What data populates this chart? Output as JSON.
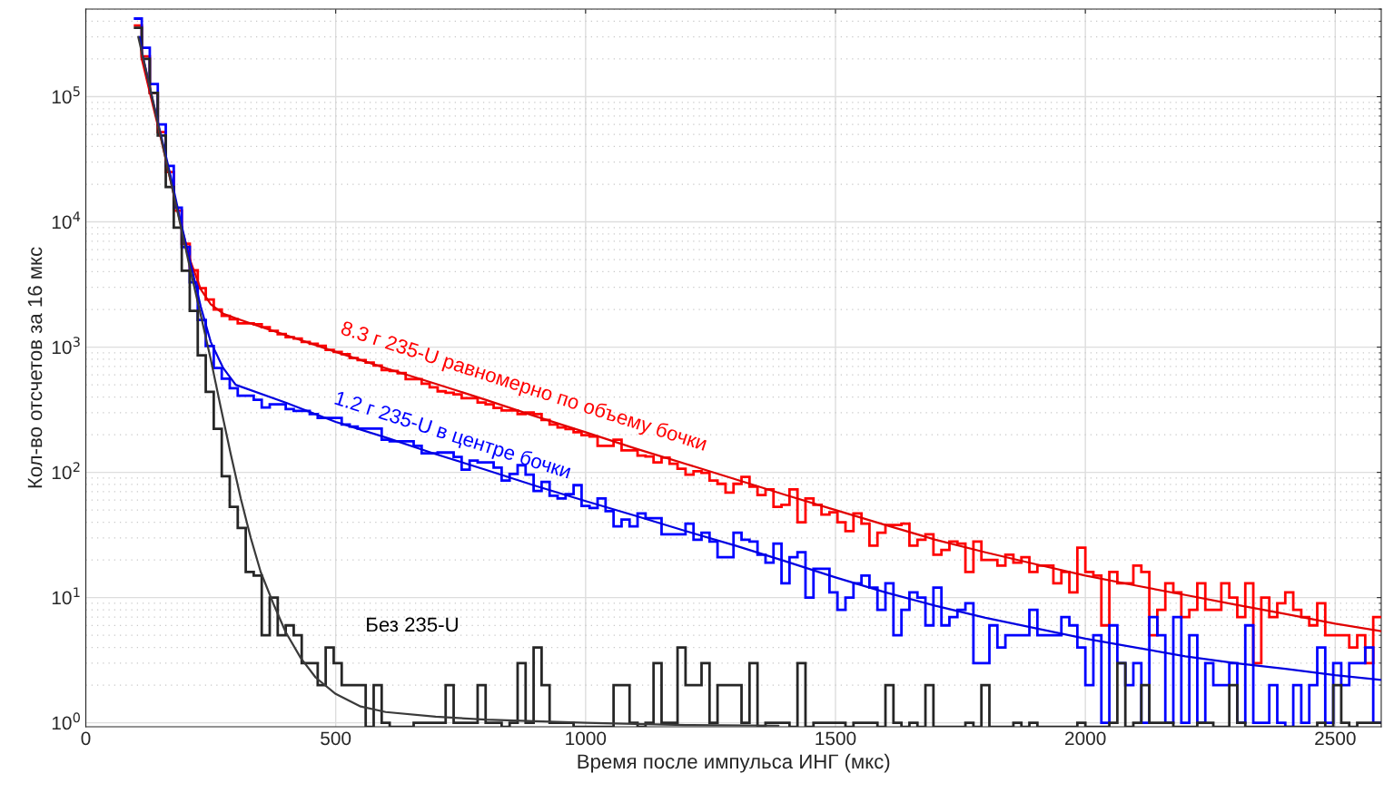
{
  "chart_data": {
    "type": "line",
    "xlabel": "Время после импульса ИНГ (мкс)",
    "ylabel": "Кол-во отсчетов за 16 мкс",
    "bins": [
      96,
      112,
      128,
      144,
      160,
      176,
      192,
      208,
      224,
      240,
      256,
      272,
      288,
      304,
      320,
      336,
      352,
      368,
      384,
      400,
      416,
      432,
      448,
      464,
      480,
      496,
      512,
      528,
      544,
      560,
      576,
      592,
      608,
      624,
      640,
      656,
      672,
      688,
      704,
      720,
      736,
      752,
      768,
      784,
      800,
      816,
      832,
      848,
      864,
      880,
      896,
      912,
      928,
      944,
      960,
      976,
      992,
      1008,
      1024,
      1040,
      1056,
      1072,
      1088,
      1104,
      1120,
      1136,
      1152,
      1168,
      1184,
      1200,
      1216,
      1232,
      1248,
      1264,
      1280,
      1296,
      1312,
      1328,
      1344,
      1360,
      1376,
      1392,
      1408,
      1424,
      1440,
      1456,
      1472,
      1488,
      1504,
      1520,
      1536,
      1552,
      1568,
      1584,
      1600,
      1616,
      1632,
      1648,
      1664,
      1680,
      1696,
      1712,
      1728,
      1744,
      1760,
      1776,
      1792,
      1808,
      1824,
      1840,
      1856,
      1872,
      1888,
      1904,
      1920,
      1936,
      1952,
      1968,
      1984,
      2000,
      2016,
      2032,
      2048,
      2064,
      2080,
      2096,
      2112,
      2128,
      2144,
      2160,
      2176,
      2192,
      2208,
      2224,
      2240,
      2256,
      2272,
      2288,
      2304,
      2320,
      2336,
      2352,
      2368,
      2384,
      2400,
      2416,
      2432,
      2448,
      2464,
      2480,
      2496,
      2512,
      2528,
      2544,
      2560,
      2576,
      2592
    ],
    "series": [
      {
        "type": "histogram",
        "name": "8.3 г 235-U равномерно по объему бочки",
        "color": "#ff0000",
        "values": [
          370000,
          210000,
          107000,
          52000,
          25000,
          12300,
          6700,
          4100,
          2960,
          2400,
          2000,
          1780,
          1670,
          1550,
          1550,
          1520,
          1440,
          1350,
          1270,
          1200,
          1170,
          1100,
          1064,
          1023,
          951,
          915,
          879,
          818,
          787,
          753,
          713,
          656,
          644,
          620,
          555,
          555,
          510,
          477,
          444,
          432,
          420,
          391,
          391,
          361,
          349,
          327,
          312,
          312,
          292,
          300,
          292,
          262,
          241,
          228,
          222,
          209,
          198,
          193,
          163,
          163,
          182,
          150,
          150,
          136,
          134,
          120,
          131,
          117,
          107,
          96,
          102,
          99,
          86,
          81,
          69,
          81,
          92,
          77,
          66,
          73,
          53,
          55,
          73,
          40,
          62,
          55,
          46,
          48,
          40,
          34,
          47,
          39,
          26,
          33,
          38,
          38,
          39,
          26,
          29,
          32,
          22,
          24,
          28,
          27,
          16,
          28,
          20,
          20,
          18,
          22,
          19,
          21,
          16,
          18,
          18,
          13,
          16,
          11,
          25,
          16,
          15,
          6,
          16,
          13,
          13,
          18,
          16,
          5,
          8,
          13,
          11,
          7,
          8,
          13,
          8,
          8,
          13,
          10,
          7,
          13,
          3,
          10,
          7,
          9,
          11,
          8,
          7,
          6,
          9,
          5,
          5,
          5,
          4,
          5,
          3,
          7
        ]
      },
      {
        "type": "histogram",
        "name": "1.2 г 235-U в центре бочки",
        "color": "#0000ff",
        "values": [
          420000,
          246000,
          126000,
          60000,
          28000,
          13000,
          6300,
          3300,
          1650,
          1020,
          680,
          560,
          470,
          410,
          410,
          380,
          330,
          350,
          350,
          320,
          310,
          310,
          292,
          272,
          272,
          272,
          241,
          232,
          224,
          224,
          224,
          182,
          177,
          177,
          177,
          163,
          142,
          142,
          144,
          144,
          133,
          105,
          124,
          120,
          120,
          109,
          86,
          97,
          114,
          96,
          71,
          84,
          65,
          62,
          67,
          79,
          54,
          52,
          62,
          49,
          37,
          42,
          37,
          47,
          43,
          43,
          32,
          32,
          32,
          39,
          29,
          33,
          28,
          21,
          21,
          33,
          29,
          28,
          22,
          19,
          27,
          13,
          21,
          23,
          10,
          17,
          17,
          11,
          8,
          10,
          13,
          15,
          12,
          8,
          13,
          5,
          8,
          11,
          10,
          6,
          12,
          6,
          7,
          8,
          9,
          3,
          3,
          6,
          4,
          5,
          5,
          5,
          8,
          5,
          5,
          5,
          7,
          6,
          4,
          2,
          5,
          1,
          6,
          3,
          2,
          3,
          1,
          7,
          5,
          1,
          7,
          1,
          5,
          1,
          3,
          2,
          2,
          3,
          1,
          6,
          1,
          1,
          2,
          1,
          null,
          2,
          1,
          2,
          4,
          1,
          3,
          2,
          3,
          3,
          4,
          1
        ]
      },
      {
        "type": "histogram",
        "name": "Без 235-U",
        "color": "#262626",
        "values": [
          355000,
          200000,
          107000,
          49000,
          19000,
          9000,
          4070,
          1950,
          860,
          440,
          223,
          93,
          53,
          36,
          16,
          15,
          5,
          10,
          5,
          6,
          5,
          3,
          3,
          2,
          4,
          3,
          2,
          2,
          2,
          null,
          2,
          1,
          null,
          null,
          null,
          1,
          1,
          1,
          1,
          2,
          1,
          1,
          1,
          2,
          1,
          1,
          null,
          1,
          3,
          1,
          4,
          2,
          1,
          1,
          1,
          null,
          null,
          null,
          null,
          null,
          2,
          2,
          1,
          null,
          1,
          3,
          1,
          1,
          4,
          2,
          2,
          3,
          1,
          2,
          2,
          2,
          1,
          3,
          null,
          1,
          1,
          1,
          null,
          3,
          null,
          1,
          1,
          1,
          1,
          null,
          1,
          1,
          1,
          null,
          2,
          1,
          null,
          1,
          null,
          2,
          null,
          null,
          null,
          null,
          1,
          null,
          2,
          null,
          null,
          null,
          1,
          null,
          1,
          null,
          null,
          null,
          null,
          null,
          1,
          null,
          null,
          null,
          1,
          3,
          null,
          1,
          2,
          1,
          1,
          1,
          null,
          null,
          null,
          1,
          1,
          null,
          null,
          2,
          1,
          null,
          null,
          null,
          null,
          null,
          null,
          null,
          null,
          null,
          1,
          null,
          2,
          1,
          null,
          1,
          1,
          1
        ]
      },
      {
        "color": "#e00000",
        "x": [
          110,
          112,
          130,
          150,
          170,
          190,
          210,
          230,
          250,
          275,
          300,
          350,
          400,
          500,
          600,
          700,
          800,
          900,
          1000,
          1100,
          1200,
          1300,
          1400,
          1500,
          1600,
          1700,
          1800,
          1900,
          2000,
          2100,
          2200,
          2300,
          2400,
          2500,
          2592
        ],
        "values": [
          260000,
          200000,
          100000,
          47000,
          21000,
          9500,
          4800,
          2900,
          2200,
          1850,
          1700,
          1450,
          1250,
          915,
          680,
          510,
          380,
          280,
          209,
          155,
          117,
          88,
          66,
          50,
          38,
          29,
          23,
          18.5,
          15,
          12.5,
          10.5,
          8.8,
          7.4,
          6.2,
          5.4
        ]
      },
      {
        "color": "#0000e0",
        "x": [
          108,
          112,
          130,
          150,
          170,
          190,
          210,
          230,
          250,
          275,
          300,
          400,
          500,
          600,
          700,
          800,
          900,
          1000,
          1100,
          1200,
          1300,
          1400,
          1500,
          1600,
          1700,
          1800,
          1900,
          2000,
          2100,
          2200,
          2300,
          2400,
          2500,
          2592
        ],
        "values": [
          300000,
          230000,
          110000,
          50000,
          23000,
          10000,
          4600,
          2100,
          1100,
          680,
          500,
          360,
          253,
          190,
          140,
          105,
          78,
          59,
          45,
          34,
          26,
          19.5,
          14.5,
          11,
          8.6,
          6.9,
          5.7,
          4.7,
          4.0,
          3.4,
          3.0,
          2.7,
          2.4,
          2.2
        ]
      },
      {
        "color": "#3a3a3a",
        "x": [
          105,
          130,
          150,
          170,
          190,
          210,
          230,
          250,
          270,
          290,
          310,
          330,
          350,
          375,
          400,
          430,
          460,
          500,
          550,
          600,
          700,
          800,
          1000,
          1200,
          1386
        ],
        "values": [
          300000,
          110000,
          48000,
          21000,
          9200,
          4000,
          1800,
          800,
          330,
          140,
          62,
          30,
          16,
          9,
          5.3,
          3.3,
          2.3,
          1.7,
          1.35,
          1.22,
          1.12,
          1.06,
          1.0,
          0.96,
          0.95
        ]
      }
    ],
    "xlim": [
      0,
      2592
    ],
    "ylim": [
      0.93,
      500000
    ],
    "xticks": [
      0,
      500,
      1000,
      1500,
      2000,
      2500
    ],
    "yticks": [
      {
        "value": 1,
        "label": "10$^{0}$"
      },
      {
        "value": 10,
        "label": "10$^{1}$"
      },
      {
        "value": 100,
        "label": "10$^{2}$"
      },
      {
        "value": 1000,
        "label": "10$^{3}$"
      },
      {
        "value": 10000,
        "label": "10$^{4}$"
      },
      {
        "value": 100000,
        "label": "10$^{5}$"
      }
    ],
    "log": "y",
    "grid": true
  }
}
